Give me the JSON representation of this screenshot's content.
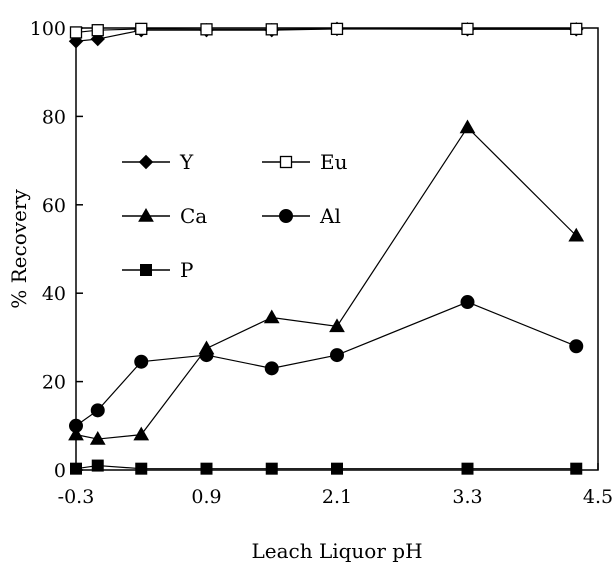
{
  "chart_data": {
    "type": "line",
    "title": "",
    "xlabel": "Leach Liquor pH",
    "ylabel": "% Recovery",
    "xlim": [
      -0.3,
      4.5
    ],
    "ylim": [
      0,
      100
    ],
    "xticks": [
      "-0.3",
      "0.9",
      "2.1",
      "3.3",
      "4.5"
    ],
    "yticks": [
      "0",
      "20",
      "40",
      "60",
      "80",
      "100"
    ],
    "grid": false,
    "legend_position": "center-left",
    "series": [
      {
        "name": "Y",
        "marker": "diamond",
        "x": [
          -0.3,
          -0.1,
          0.3,
          0.9,
          1.5,
          2.1,
          3.3,
          4.3
        ],
        "y": [
          97,
          97.5,
          99.5,
          99.5,
          99.5,
          99.8,
          99.7,
          99.7
        ]
      },
      {
        "name": "Eu",
        "marker": "square-open",
        "x": [
          -0.3,
          -0.1,
          0.3,
          0.9,
          1.5,
          2.1,
          3.3,
          4.3
        ],
        "y": [
          99,
          99.5,
          99.8,
          99.7,
          99.7,
          99.8,
          99.8,
          99.8
        ]
      },
      {
        "name": "Ca",
        "marker": "triangle",
        "x": [
          -0.3,
          -0.1,
          0.3,
          0.9,
          1.5,
          2.1,
          3.3,
          4.3
        ],
        "y": [
          8,
          7,
          8,
          27.5,
          34.5,
          32.5,
          77.5,
          53
        ]
      },
      {
        "name": "Al",
        "marker": "circle",
        "x": [
          -0.3,
          -0.1,
          0.3,
          0.9,
          1.5,
          2.1,
          3.3,
          4.3
        ],
        "y": [
          10,
          13.5,
          24.5,
          26,
          23,
          26,
          38,
          28
        ]
      },
      {
        "name": "P",
        "marker": "square",
        "x": [
          -0.3,
          -0.1,
          0.3,
          0.9,
          1.5,
          2.1,
          3.3,
          4.3
        ],
        "y": [
          0.3,
          1.0,
          0.3,
          0.3,
          0.3,
          0.3,
          0.3,
          0.3
        ]
      }
    ]
  }
}
